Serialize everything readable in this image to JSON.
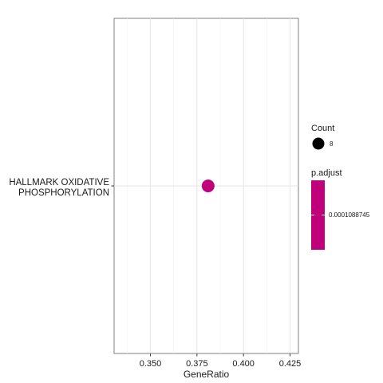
{
  "chart_data": {
    "type": "scatter",
    "xlabel": "GeneRatio",
    "ylabel": "",
    "xlim": [
      0.3305,
      0.4295
    ],
    "x_ticks": [
      "0.350",
      "0.375",
      "0.400",
      "0.425"
    ],
    "x_tick_values": [
      0.35,
      0.375,
      0.4,
      0.425
    ],
    "x_minor_values": [
      0.3375,
      0.3625,
      0.3875,
      0.4125
    ],
    "grid": true,
    "categories": [
      {
        "line1": "HALLMARK OXIDATIVE",
        "line2": "PHOSPHORYLATION"
      }
    ],
    "points": [
      {
        "category_index": 0,
        "x": 0.381,
        "count": 8,
        "p_adjust": 0.0001088745
      }
    ],
    "legend_position": "right",
    "size_legend": {
      "title": "Count",
      "label": "8"
    },
    "color_legend": {
      "title": "p.adjust",
      "label": "0.0001088745"
    },
    "point_color": "#C0007A"
  }
}
